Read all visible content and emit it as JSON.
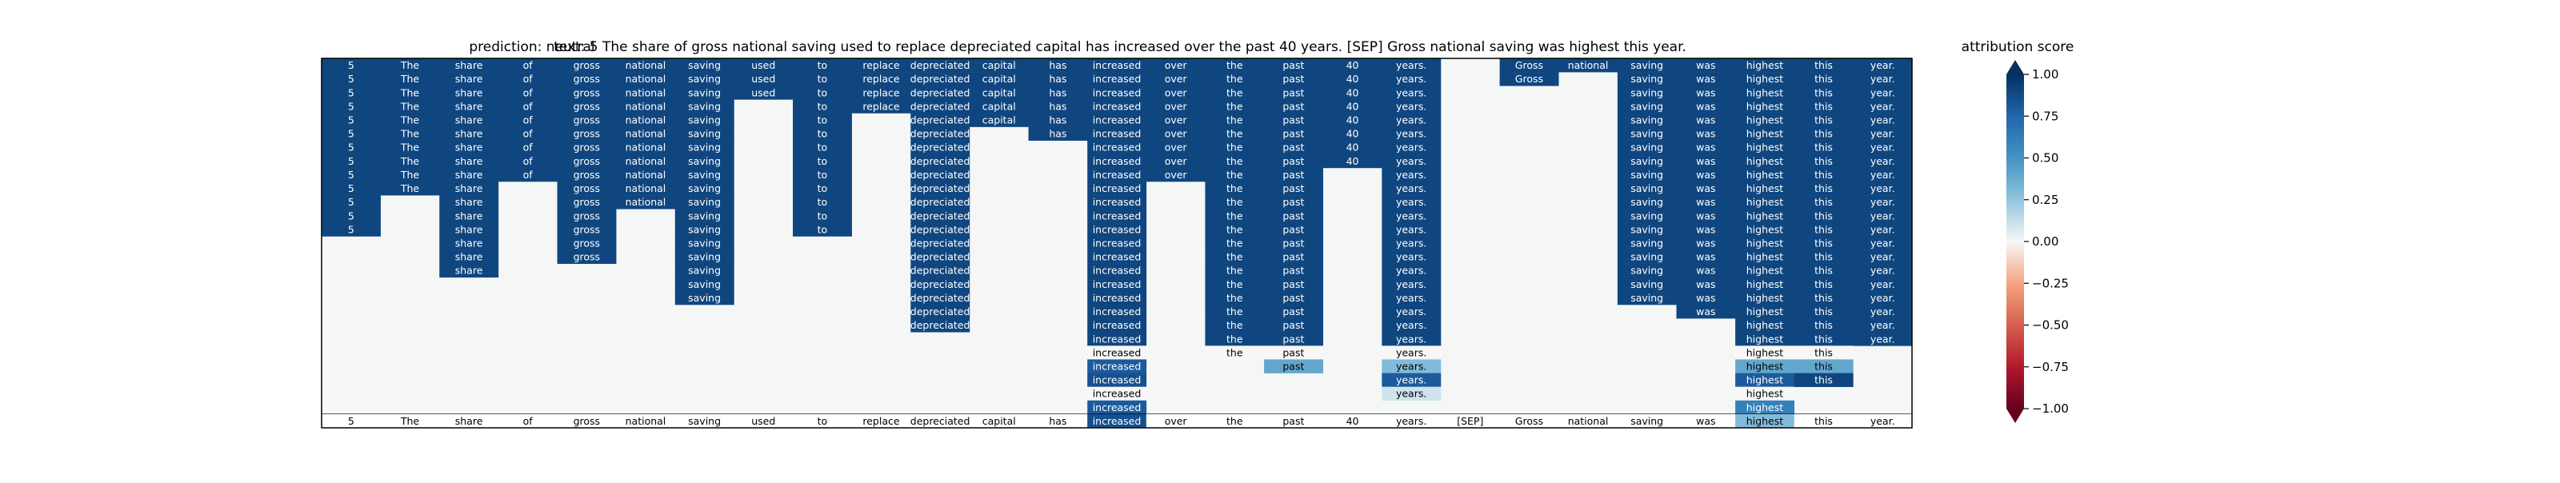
{
  "chart_data": [
    {
      "type": "heatmap",
      "title_prediction": "prediction:  neutral",
      "title_text": "text:  5 The share of gross national saving used to replace depreciated capital has increased over the past 40 years. [SEP] Gross national saving was highest this year.",
      "tokens": [
        "5",
        "The",
        "share",
        "of",
        "gross",
        "national",
        "saving",
        "used",
        "to",
        "replace",
        "depreciated",
        "capital",
        "has",
        "increased",
        "over",
        "the",
        "past",
        "40",
        "years.",
        "[SEP]",
        "Gross",
        "national",
        "saving",
        "was",
        "highest",
        "this",
        "year."
      ],
      "n_rows": 26,
      "columns": [
        {
          "token": "5",
          "cells": [
            0.9,
            0.9,
            0.9,
            0.9,
            0.9,
            0.9,
            0.9,
            0.9,
            0.9,
            0.9,
            0.9,
            0.9,
            0.9
          ]
        },
        {
          "token": "The",
          "cells": [
            0.9,
            0.9,
            0.9,
            0.9,
            0.9,
            0.9,
            0.9,
            0.9,
            0.9,
            0.9
          ]
        },
        {
          "token": "share",
          "cells": [
            0.9,
            0.9,
            0.9,
            0.9,
            0.9,
            0.9,
            0.9,
            0.9,
            0.9,
            0.9,
            0.9,
            0.9,
            0.9,
            0.9,
            0.9,
            0.9
          ]
        },
        {
          "token": "of",
          "cells": [
            0.9,
            0.9,
            0.9,
            0.9,
            0.9,
            0.9,
            0.9,
            0.9,
            0.9
          ]
        },
        {
          "token": "gross",
          "cells": [
            0.9,
            0.9,
            0.9,
            0.9,
            0.9,
            0.9,
            0.9,
            0.9,
            0.9,
            0.9,
            0.9,
            0.9,
            0.9,
            0.9,
            0.9
          ]
        },
        {
          "token": "national",
          "cells": [
            0.9,
            0.9,
            0.9,
            0.9,
            0.9,
            0.9,
            0.9,
            0.9,
            0.9,
            0.9,
            0.9
          ]
        },
        {
          "token": "saving",
          "cells": [
            0.9,
            0.9,
            0.9,
            0.9,
            0.9,
            0.9,
            0.9,
            0.9,
            0.9,
            0.9,
            0.9,
            0.9,
            0.9,
            0.9,
            0.9,
            0.9,
            0.9,
            0.9
          ]
        },
        {
          "token": "used",
          "cells": [
            0.9,
            0.9,
            0.9
          ]
        },
        {
          "token": "to",
          "cells": [
            0.9,
            0.9,
            0.9,
            0.9,
            0.9,
            0.9,
            0.9,
            0.9,
            0.9,
            0.9,
            0.9,
            0.9,
            0.9
          ]
        },
        {
          "token": "replace",
          "cells": [
            0.9,
            0.9,
            0.9,
            0.9
          ]
        },
        {
          "token": "depreciated",
          "cells": [
            0.9,
            0.9,
            0.9,
            0.9,
            0.9,
            0.9,
            0.9,
            0.9,
            0.9,
            0.9,
            0.9,
            0.9,
            0.9,
            0.9,
            0.9,
            0.9,
            0.9,
            0.9,
            0.9,
            0.9
          ]
        },
        {
          "token": "capital",
          "cells": [
            0.9,
            0.9,
            0.9,
            0.9,
            0.9
          ]
        },
        {
          "token": "has",
          "cells": [
            0.9,
            0.9,
            0.9,
            0.9,
            0.9,
            0.9
          ]
        },
        {
          "token": "increased",
          "cells": [
            0.9,
            0.9,
            0.9,
            0.9,
            0.9,
            0.9,
            0.9,
            0.9,
            0.9,
            0.9,
            0.9,
            0.9,
            0.9,
            0.9,
            0.9,
            0.9,
            0.9,
            0.9,
            0.9,
            0.9,
            0.9,
            0.0,
            0.8,
            0.85,
            0.0,
            0.8
          ]
        },
        {
          "token": "over",
          "cells": [
            0.9,
            0.9,
            0.9,
            0.9,
            0.9,
            0.9,
            0.9,
            0.9,
            0.9
          ]
        },
        {
          "token": "the",
          "cells": [
            0.9,
            0.9,
            0.9,
            0.9,
            0.9,
            0.9,
            0.9,
            0.9,
            0.9,
            0.9,
            0.9,
            0.9,
            0.9,
            0.9,
            0.9,
            0.9,
            0.9,
            0.9,
            0.9,
            0.9,
            0.9,
            0.0
          ]
        },
        {
          "token": "past",
          "cells": [
            0.9,
            0.9,
            0.9,
            0.9,
            0.9,
            0.9,
            0.9,
            0.9,
            0.9,
            0.9,
            0.9,
            0.9,
            0.9,
            0.9,
            0.9,
            0.9,
            0.9,
            0.9,
            0.9,
            0.9,
            0.9,
            0.0,
            0.4
          ]
        },
        {
          "token": "40",
          "cells": [
            0.9,
            0.9,
            0.9,
            0.9,
            0.9,
            0.9,
            0.9,
            0.9
          ]
        },
        {
          "token": "years.",
          "cells": [
            0.9,
            0.9,
            0.9,
            0.9,
            0.9,
            0.9,
            0.9,
            0.9,
            0.9,
            0.9,
            0.9,
            0.9,
            0.9,
            0.9,
            0.9,
            0.9,
            0.9,
            0.9,
            0.9,
            0.9,
            0.9,
            0.0,
            0.3,
            0.8,
            0.1
          ]
        },
        {
          "token": "[SEP]",
          "cells": []
        },
        {
          "token": "Gross",
          "cells": [
            0.9,
            0.9
          ]
        },
        {
          "token": "national",
          "cells": [
            0.9
          ]
        },
        {
          "token": "saving",
          "cells": [
            0.9,
            0.9,
            0.9,
            0.9,
            0.9,
            0.9,
            0.9,
            0.9,
            0.9,
            0.9,
            0.9,
            0.9,
            0.9,
            0.9,
            0.9,
            0.9,
            0.9,
            0.9
          ]
        },
        {
          "token": "was",
          "cells": [
            0.9,
            0.9,
            0.9,
            0.9,
            0.9,
            0.9,
            0.9,
            0.9,
            0.9,
            0.9,
            0.9,
            0.9,
            0.9,
            0.9,
            0.9,
            0.9,
            0.9,
            0.9,
            0.9
          ]
        },
        {
          "token": "highest",
          "cells": [
            0.9,
            0.9,
            0.9,
            0.9,
            0.9,
            0.9,
            0.9,
            0.9,
            0.9,
            0.9,
            0.9,
            0.9,
            0.9,
            0.9,
            0.9,
            0.9,
            0.9,
            0.9,
            0.9,
            0.9,
            0.9,
            0.0,
            0.4,
            0.8,
            0.0,
            0.6
          ]
        },
        {
          "token": "this",
          "cells": [
            0.9,
            0.9,
            0.9,
            0.9,
            0.9,
            0.9,
            0.9,
            0.9,
            0.9,
            0.9,
            0.9,
            0.9,
            0.9,
            0.9,
            0.9,
            0.9,
            0.9,
            0.9,
            0.9,
            0.9,
            0.9,
            0.0,
            0.4,
            0.9
          ]
        },
        {
          "token": "year.",
          "cells": [
            0.9,
            0.9,
            0.9,
            0.9,
            0.9,
            0.9,
            0.9,
            0.9,
            0.9,
            0.9,
            0.9,
            0.9,
            0.9,
            0.9,
            0.9,
            0.9,
            0.9,
            0.9,
            0.9,
            0.9,
            0.9
          ]
        }
      ],
      "bottom_row_values": [
        0,
        0,
        0,
        0,
        0,
        0,
        0,
        0,
        0,
        0,
        0,
        0,
        0,
        0.85,
        0,
        0,
        0,
        0,
        0,
        0,
        0,
        0,
        0,
        0,
        0.3,
        0,
        0
      ],
      "colormap": "RdBu",
      "colors": {
        "neg": "#67001f",
        "mid": "#f7f7f7",
        "pos": "#053061",
        "empty": "#f5f7f7"
      }
    },
    {
      "type": "colorbar",
      "title": "attribution score",
      "range": [
        -1,
        1
      ],
      "ticks": [
        "1.00",
        "0.75",
        "0.50",
        "0.25",
        "0.00",
        "−0.25",
        "−0.50",
        "−0.75",
        "−1.00"
      ],
      "tick_values": [
        1,
        0.75,
        0.5,
        0.25,
        0,
        -0.25,
        -0.5,
        -0.75,
        -1
      ]
    }
  ]
}
